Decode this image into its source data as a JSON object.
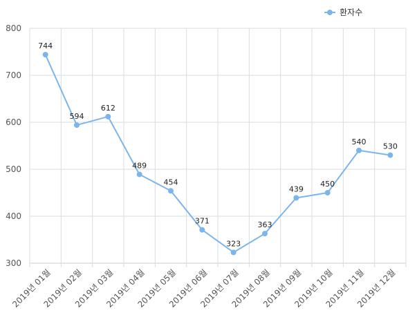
{
  "chart_data": {
    "type": "line",
    "title": "",
    "xlabel": "",
    "ylabel": "",
    "categories": [
      "2019년 01월",
      "2019년 02월",
      "2019년 03월",
      "2019년 04월",
      "2019년 05월",
      "2019년 06월",
      "2019년 07월",
      "2019년 08월",
      "2019년 09월",
      "2019년 10월",
      "2019년 11월",
      "2019년 12월"
    ],
    "series": [
      {
        "name": "환자수",
        "values": [
          744,
          594,
          612,
          489,
          454,
          371,
          323,
          363,
          439,
          450,
          540,
          530
        ],
        "color": "#7cb5ec"
      }
    ],
    "ylim": [
      300,
      800
    ],
    "yticks": [
      300,
      400,
      500,
      600,
      700,
      800
    ],
    "grid": true,
    "legend_position": "top-right",
    "show_data_labels": true
  }
}
